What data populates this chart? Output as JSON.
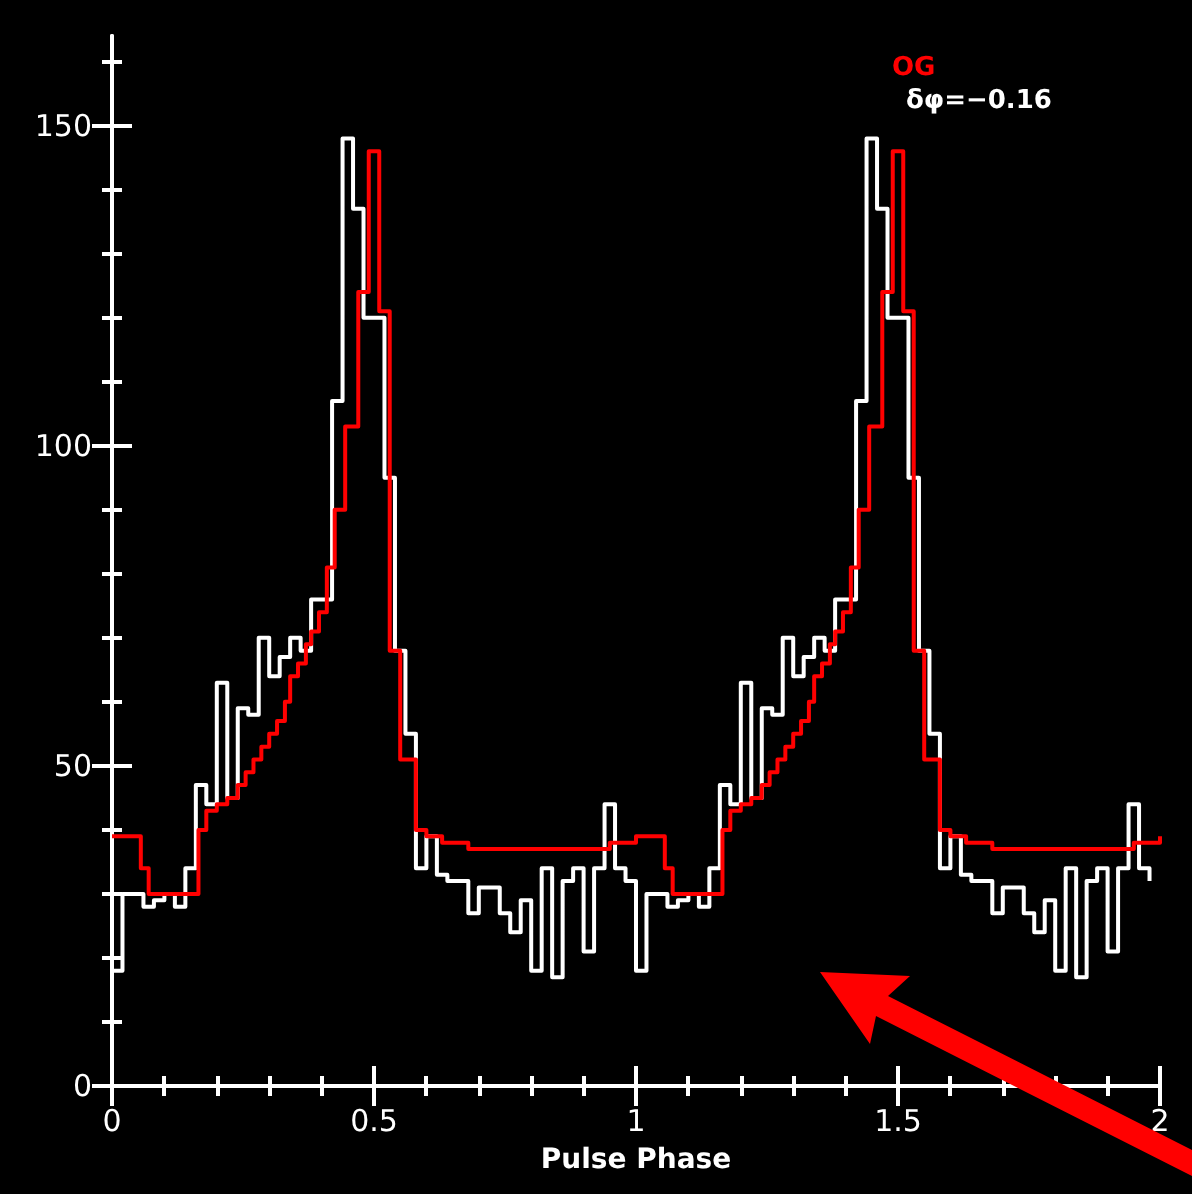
{
  "chart_data": {
    "type": "step",
    "xlabel": "Pulse Phase",
    "annotations": [
      "δφ=−0.16"
    ],
    "xlim": [
      0,
      2
    ],
    "xticks": [
      0,
      0.5,
      1,
      1.5,
      2
    ],
    "ylim": [
      0,
      164
    ],
    "yticks": [
      0,
      50,
      100,
      150
    ],
    "grid": false,
    "legend": "top right",
    "marker": "none",
    "line_style": "solid",
    "series": [
      {
        "color": "#ffffff",
        "x": [
          0,
          0.02,
          0.04,
          0.06,
          0.08,
          0.1,
          0.12,
          0.14,
          0.16,
          0.18,
          0.2,
          0.22,
          0.24,
          0.26,
          0.28,
          0.3,
          0.32,
          0.34,
          0.36,
          0.38,
          0.4,
          0.42,
          0.44,
          0.46,
          0.48,
          0.5,
          0.52,
          0.54,
          0.56,
          0.58,
          0.6,
          0.62,
          0.64,
          0.66,
          0.68,
          0.7,
          0.72,
          0.74,
          0.76,
          0.78,
          0.8,
          0.82,
          0.84,
          0.86,
          0.88,
          0.9,
          0.92,
          0.94,
          0.96,
          0.98,
          1,
          1.02,
          1.04,
          1.06,
          1.08,
          1.1,
          1.12,
          1.14,
          1.16,
          1.18,
          1.2,
          1.22,
          1.24,
          1.26,
          1.28,
          1.3,
          1.32,
          1.34,
          1.36,
          1.38,
          1.4,
          1.42,
          1.44,
          1.46,
          1.48,
          1.5,
          1.52,
          1.54,
          1.56,
          1.58,
          1.6,
          1.62,
          1.64,
          1.66,
          1.68,
          1.7,
          1.72,
          1.74,
          1.76,
          1.78,
          1.8,
          1.82,
          1.84,
          1.86,
          1.88,
          1.9,
          1.92,
          1.94,
          1.96,
          1.98
        ],
        "values": [
          18,
          30,
          30,
          28,
          29,
          30,
          28,
          34,
          47,
          44,
          63,
          45,
          59,
          58,
          70,
          64,
          67,
          70,
          68,
          76,
          76,
          107,
          148,
          137,
          120,
          120,
          95,
          68,
          55,
          34,
          39,
          33,
          32,
          32,
          27,
          31,
          31,
          27,
          24,
          29,
          18,
          34,
          17,
          32,
          34,
          21,
          34,
          44,
          34,
          32,
          18,
          30,
          30,
          28,
          29,
          30,
          28,
          34,
          47,
          44,
          63,
          45,
          59,
          58,
          70,
          64,
          67,
          70,
          68,
          76,
          76,
          107,
          148,
          137,
          120,
          120,
          95,
          68,
          55,
          34,
          39,
          33,
          32,
          32,
          27,
          31,
          31,
          27,
          24,
          29,
          18,
          34,
          17,
          32,
          34,
          21,
          34,
          44,
          34,
          32
        ]
      },
      {
        "name": "OG",
        "color": "#ff0000",
        "x": [
          0,
          0.055,
          0.07,
          0.165,
          0.18,
          0.2,
          0.22,
          0.24,
          0.255,
          0.27,
          0.285,
          0.3,
          0.315,
          0.33,
          0.34,
          0.355,
          0.37,
          0.38,
          0.395,
          0.41,
          0.425,
          0.445,
          0.47,
          0.49,
          0.51,
          0.53,
          0.55,
          0.58,
          0.6,
          0.63,
          0.68,
          0.75,
          0.85,
          0.95,
          1,
          1.055,
          1.07,
          1.165,
          1.18,
          1.2,
          1.22,
          1.24,
          1.255,
          1.27,
          1.285,
          1.3,
          1.315,
          1.33,
          1.34,
          1.355,
          1.37,
          1.38,
          1.395,
          1.41,
          1.425,
          1.445,
          1.47,
          1.49,
          1.51,
          1.53,
          1.55,
          1.58,
          1.6,
          1.63,
          1.68,
          1.75,
          1.85,
          1.95,
          2
        ],
        "values": [
          39,
          34,
          30,
          40,
          43,
          44,
          45,
          47,
          49,
          51,
          53,
          55,
          57,
          60,
          64,
          66,
          69,
          71,
          74,
          81,
          90,
          103,
          124,
          146,
          121,
          68,
          51,
          40,
          39,
          38,
          37,
          37,
          37,
          38,
          39,
          34,
          30,
          40,
          43,
          44,
          45,
          47,
          49,
          51,
          53,
          55,
          57,
          60,
          64,
          66,
          69,
          71,
          74,
          81,
          90,
          103,
          124,
          146,
          121,
          68,
          51,
          40,
          39,
          38,
          37,
          37,
          37,
          38,
          39
        ]
      }
    ]
  }
}
